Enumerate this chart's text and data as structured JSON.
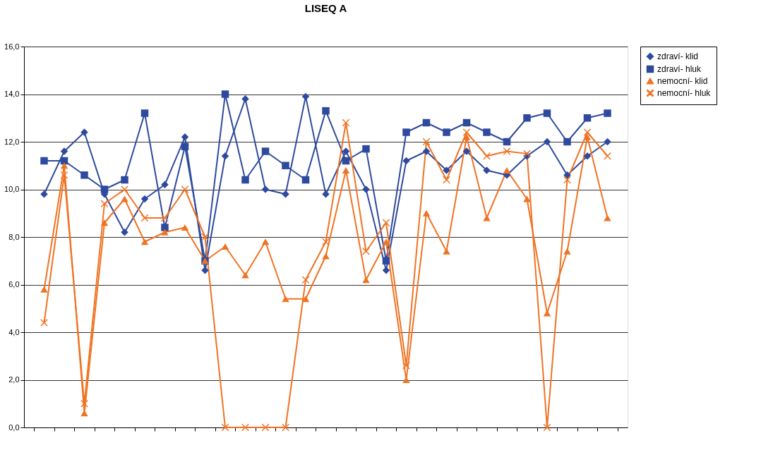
{
  "chart_data": {
    "type": "line",
    "title": "LISEQ A",
    "categories": [
      null,
      null,
      null,
      null,
      null,
      null,
      null,
      null,
      null,
      null,
      null,
      null,
      null,
      null,
      null,
      null,
      null,
      null,
      null,
      null,
      null,
      null,
      null,
      null,
      null,
      null,
      null,
      null,
      null
    ],
    "series": [
      {
        "name": "zdraví- klid",
        "color": "#2e4a9e",
        "marker": "diamond",
        "values": [
          9.8,
          11.6,
          12.4,
          9.8,
          8.2,
          9.6,
          10.2,
          12.2,
          6.6,
          11.4,
          13.8,
          10.0,
          9.8,
          13.9,
          9.8,
          11.6,
          10.0,
          6.6,
          11.2,
          11.6,
          10.8,
          11.6,
          10.8,
          10.6,
          11.4,
          12.0,
          10.6,
          11.4,
          12.0
        ]
      },
      {
        "name": "zdraví- hluk",
        "color": "#2e4a9e",
        "marker": "square",
        "values": [
          11.2,
          11.2,
          10.6,
          10.0,
          10.4,
          13.2,
          8.4,
          11.8,
          7.0,
          14.0,
          10.4,
          11.6,
          11.0,
          10.4,
          13.3,
          11.2,
          11.7,
          7.0,
          12.4,
          12.8,
          12.4,
          12.8,
          12.4,
          12.0,
          13.0,
          13.2,
          12.0,
          13.0,
          13.2
        ]
      },
      {
        "name": "nemocní- klid",
        "color": "#f07323",
        "marker": "triangle",
        "values": [
          5.8,
          11.0,
          0.6,
          8.6,
          9.6,
          7.8,
          8.2,
          8.4,
          7.0,
          7.6,
          6.4,
          7.8,
          5.4,
          5.4,
          7.2,
          10.8,
          6.2,
          7.8,
          2.0,
          9.0,
          7.4,
          12.2,
          8.8,
          10.8,
          9.6,
          4.8,
          7.4,
          12.2,
          8.8
        ]
      },
      {
        "name": "nemocní- hluk",
        "color": "#f07323",
        "marker": "cross",
        "values": [
          4.4,
          10.6,
          1.0,
          9.4,
          10.0,
          8.8,
          8.8,
          10.0,
          8.0,
          0,
          0,
          0,
          0,
          6.2,
          7.8,
          12.8,
          7.4,
          8.6,
          2.6,
          12.0,
          10.4,
          12.4,
          11.4,
          11.6,
          11.5,
          0,
          10.4,
          12.4,
          11.4
        ]
      }
    ],
    "ylim": [
      0,
      16
    ],
    "yticks": [
      {
        "value": 0,
        "label": "0,0"
      },
      {
        "value": 2,
        "label": "2,0"
      },
      {
        "value": 4,
        "label": "4,0"
      },
      {
        "value": 6,
        "label": "6,0"
      },
      {
        "value": 8,
        "label": "8,0"
      },
      {
        "value": 10,
        "label": "10,0"
      },
      {
        "value": 12,
        "label": "12,0"
      },
      {
        "value": 14,
        "label": "14,0"
      },
      {
        "value": 16,
        "label": "16,0"
      }
    ],
    "grid": "y",
    "legend": "right",
    "tick_labels": "y",
    "line_style": "solid"
  }
}
